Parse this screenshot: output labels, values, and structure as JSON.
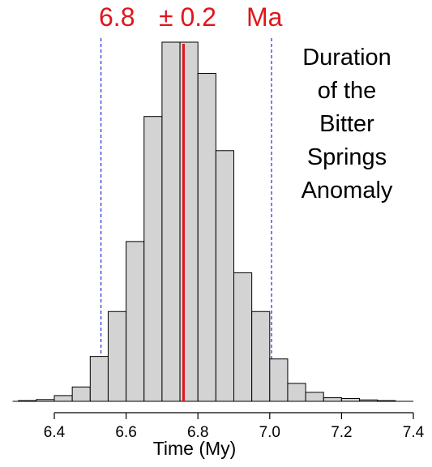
{
  "chart_data": {
    "type": "histogram",
    "title_value": "6.8",
    "title_pm": "± 0.2",
    "title_unit": "Ma",
    "annotation_lines": [
      "Duration",
      "of the",
      "Bitter",
      "Springs",
      "Anomaly"
    ],
    "xlabel": "Time (My)",
    "xlim": [
      6.25,
      7.4
    ],
    "ylim": [
      0,
      1
    ],
    "x_ticks": [
      6.4,
      6.6,
      6.8,
      7.0,
      7.2,
      7.4
    ],
    "x_tick_labels": [
      "6.4",
      "6.6",
      "6.8",
      "7.0",
      "7.2",
      "7.4"
    ],
    "bin_width": 0.05,
    "bins": [
      {
        "x0": 6.3,
        "x1": 6.35,
        "freq": 0.002
      },
      {
        "x0": 6.35,
        "x1": 6.4,
        "freq": 0.005
      },
      {
        "x0": 6.4,
        "x1": 6.45,
        "freq": 0.016
      },
      {
        "x0": 6.45,
        "x1": 6.5,
        "freq": 0.04
      },
      {
        "x0": 6.5,
        "x1": 6.55,
        "freq": 0.125
      },
      {
        "x0": 6.55,
        "x1": 6.6,
        "freq": 0.25
      },
      {
        "x0": 6.6,
        "x1": 6.65,
        "freq": 0.445
      },
      {
        "x0": 6.65,
        "x1": 6.7,
        "freq": 0.793
      },
      {
        "x0": 6.7,
        "x1": 6.75,
        "freq": 1.0
      },
      {
        "x0": 6.75,
        "x1": 6.8,
        "freq": 1.0
      },
      {
        "x0": 6.8,
        "x1": 6.85,
        "freq": 0.913
      },
      {
        "x0": 6.85,
        "x1": 6.9,
        "freq": 0.698
      },
      {
        "x0": 6.9,
        "x1": 6.95,
        "freq": 0.358
      },
      {
        "x0": 6.95,
        "x1": 7.0,
        "freq": 0.25
      },
      {
        "x0": 7.0,
        "x1": 7.05,
        "freq": 0.118
      },
      {
        "x0": 7.05,
        "x1": 7.1,
        "freq": 0.05
      },
      {
        "x0": 7.1,
        "x1": 7.15,
        "freq": 0.025
      },
      {
        "x0": 7.15,
        "x1": 7.2,
        "freq": 0.01
      },
      {
        "x0": 7.2,
        "x1": 7.25,
        "freq": 0.008
      },
      {
        "x0": 7.25,
        "x1": 7.3,
        "freq": 0.004
      },
      {
        "x0": 7.3,
        "x1": 7.35,
        "freq": 0.002
      }
    ],
    "median_line": {
      "x": 6.76,
      "color": "#e0151b"
    },
    "interval_lines": [
      {
        "x": 6.53,
        "color": "#1f2bd8",
        "style": "dashed"
      },
      {
        "x": 7.005,
        "color": "#1f2bd8",
        "style": "dashed"
      }
    ],
    "bar_fill": "#d3d3d3",
    "bar_stroke": "#000000"
  }
}
